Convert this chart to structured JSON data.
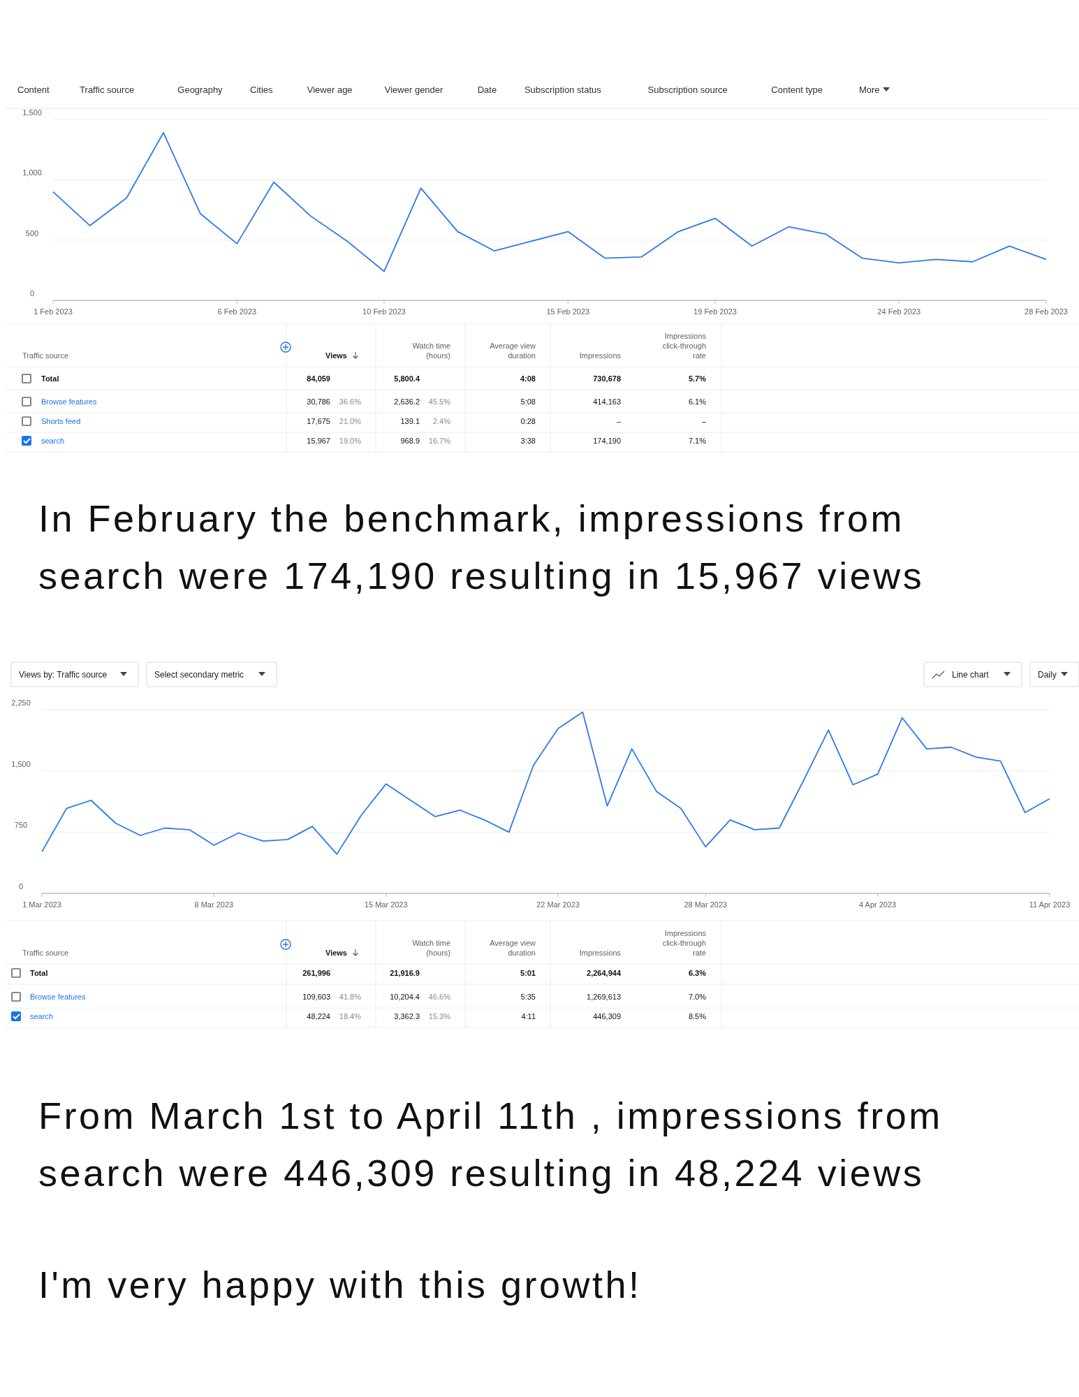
{
  "chart_data": [
    {
      "type": "line",
      "annotations": [
        "Content",
        "Traffic source",
        "Geography",
        "Cities",
        "Viewer age",
        "Viewer gender",
        "Date",
        "Subscription status",
        "Subscription source",
        "Content type",
        "More"
      ],
      "x": [
        "2023-02-01",
        "2023-02-02",
        "2023-02-03",
        "2023-02-04",
        "2023-02-05",
        "2023-02-06",
        "2023-02-07",
        "2023-02-08",
        "2023-02-09",
        "2023-02-10",
        "2023-02-11",
        "2023-02-12",
        "2023-02-13",
        "2023-02-14",
        "2023-02-15",
        "2023-02-16",
        "2023-02-17",
        "2023-02-18",
        "2023-02-19",
        "2023-02-20",
        "2023-02-21",
        "2023-02-22",
        "2023-02-23",
        "2023-02-24",
        "2023-02-25",
        "2023-02-26",
        "2023-02-27",
        "2023-02-28"
      ],
      "series": [
        {
          "color": "#2f7ae5",
          "values": [
            900,
            620,
            850,
            1390,
            720,
            470,
            980,
            700,
            490,
            240,
            930,
            570,
            410,
            490,
            570,
            350,
            360,
            570,
            680,
            450,
            610,
            550,
            350,
            310,
            340,
            320,
            450,
            340
          ]
        }
      ],
      "xlim": [
        "2023-02-01",
        "2023-02-28"
      ],
      "xticks": [
        {
          "value": "2023-02-01",
          "label": "1 Feb 2023"
        },
        {
          "value": "2023-02-06",
          "label": "6 Feb 2023"
        },
        {
          "value": "2023-02-10",
          "label": "10 Feb 2023"
        },
        {
          "value": "2023-02-15",
          "label": "15 Feb 2023"
        },
        {
          "value": "2023-02-19",
          "label": "19 Feb 2023"
        },
        {
          "value": "2023-02-24",
          "label": "24 Feb 2023"
        },
        {
          "value": "2023-02-28",
          "label": "28 Feb 2023"
        }
      ],
      "ylim": [
        0,
        1500
      ],
      "yticks": [
        0,
        {
          "value": 500,
          "label": "500"
        },
        {
          "value": 1000,
          "label": "1,000"
        },
        {
          "value": 1500,
          "label": "1,500"
        }
      ],
      "grid": "y",
      "marker": "none",
      "line_style": "solid"
    },
    {
      "type": "other",
      "categories": [
        "Traffic source",
        "Views",
        null,
        "Watch time (hours)",
        null,
        "Average view duration",
        "Impressions",
        "Impressions click-through rate"
      ],
      "annotations": [
        "Total",
        "84,059",
        null,
        "5,800.4",
        null,
        "4:08",
        "730,678",
        "5.7%",
        "Browse features",
        "30,786",
        "36.6%",
        "2,636.2",
        "45.5%",
        "5:08",
        "414,163",
        "6.1%",
        "Shorts feed",
        "17,675",
        "21.0%",
        "139.1",
        "2.4%",
        "0:28",
        "–",
        "–",
        "search",
        "15,967",
        "19.0%",
        "968.9",
        "16.7%",
        "3:38",
        "174,190",
        "7.1%"
      ],
      "subtitle": "In February the benchmark, impressions from search were 174,190 resulting in 15,967 views"
    },
    {
      "type": "line",
      "annotations": [
        "Views by: Traffic source",
        "Select secondary metric",
        "Line chart",
        "Daily"
      ],
      "x": [
        "2023-03-01",
        "2023-03-02",
        "2023-03-03",
        "2023-03-04",
        "2023-03-05",
        "2023-03-06",
        "2023-03-07",
        "2023-03-08",
        "2023-03-09",
        "2023-03-10",
        "2023-03-11",
        "2023-03-12",
        "2023-03-13",
        "2023-03-14",
        "2023-03-15",
        "2023-03-16",
        "2023-03-17",
        "2023-03-18",
        "2023-03-19",
        "2023-03-20",
        "2023-03-21",
        "2023-03-22",
        "2023-03-23",
        "2023-03-24",
        "2023-03-25",
        "2023-03-26",
        "2023-03-27",
        "2023-03-28",
        "2023-03-29",
        "2023-03-30",
        "2023-03-31",
        "2023-04-01",
        "2023-04-02",
        "2023-04-03",
        "2023-04-04",
        "2023-04-05",
        "2023-04-06",
        "2023-04-07",
        "2023-04-08",
        "2023-04-09",
        "2023-04-10",
        "2023-04-11"
      ],
      "series": [
        {
          "color": "#2f7ae5",
          "values": [
            510,
            1040,
            1140,
            860,
            710,
            800,
            780,
            590,
            740,
            640,
            660,
            820,
            480,
            960,
            1340,
            1140,
            940,
            1020,
            900,
            750,
            1570,
            2020,
            2220,
            1070,
            1770,
            1250,
            1040,
            570,
            900,
            780,
            800,
            1390,
            2000,
            1330,
            1460,
            2150,
            1770,
            1790,
            1670,
            1620,
            990,
            1160
          ]
        }
      ],
      "xlim": [
        "2023-03-01",
        "2023-04-11"
      ],
      "xticks": [
        {
          "value": "2023-03-01",
          "label": "1 Mar 2023"
        },
        {
          "value": "2023-03-08",
          "label": "8 Mar 2023"
        },
        {
          "value": "2023-03-15",
          "label": "15 Mar 2023"
        },
        {
          "value": "2023-03-22",
          "label": "22 Mar 2023"
        },
        {
          "value": "2023-03-28",
          "label": "28 Mar 2023"
        },
        {
          "value": "2023-04-04",
          "label": "4 Apr 2023"
        },
        {
          "value": "2023-04-11",
          "label": "11 Apr 2023"
        }
      ],
      "ylim": [
        0,
        2250
      ],
      "yticks": [
        0,
        {
          "value": 750,
          "label": "750"
        },
        {
          "value": 1500,
          "label": "1,500"
        },
        {
          "value": 2250,
          "label": "2,250"
        }
      ],
      "grid": "y",
      "marker": "none",
      "line_style": "solid"
    },
    {
      "type": "other",
      "categories": [
        "Traffic source",
        "Views",
        null,
        "Watch time (hours)",
        null,
        "Average view duration",
        "Impressions",
        "Impressions click-through rate"
      ],
      "annotations": [
        "Total",
        "261,996",
        null,
        "21,916.9",
        null,
        "5:01",
        "2,264,944",
        "6.3%",
        "Browse features",
        "109,603",
        "41.8%",
        "10,204.4",
        "46.6%",
        "5:35",
        "1,269,613",
        "7.0%",
        "search",
        "48,224",
        "18.4%",
        "3,362.3",
        "15.3%",
        "4:11",
        "446,309",
        "8.5%"
      ],
      "subtitle": "From March 1st to April 11th , impressions from search were 446,309 resulting in 48,224 views"
    },
    {
      "type": "other",
      "title": "I'm very happy with this growth!"
    }
  ]
}
